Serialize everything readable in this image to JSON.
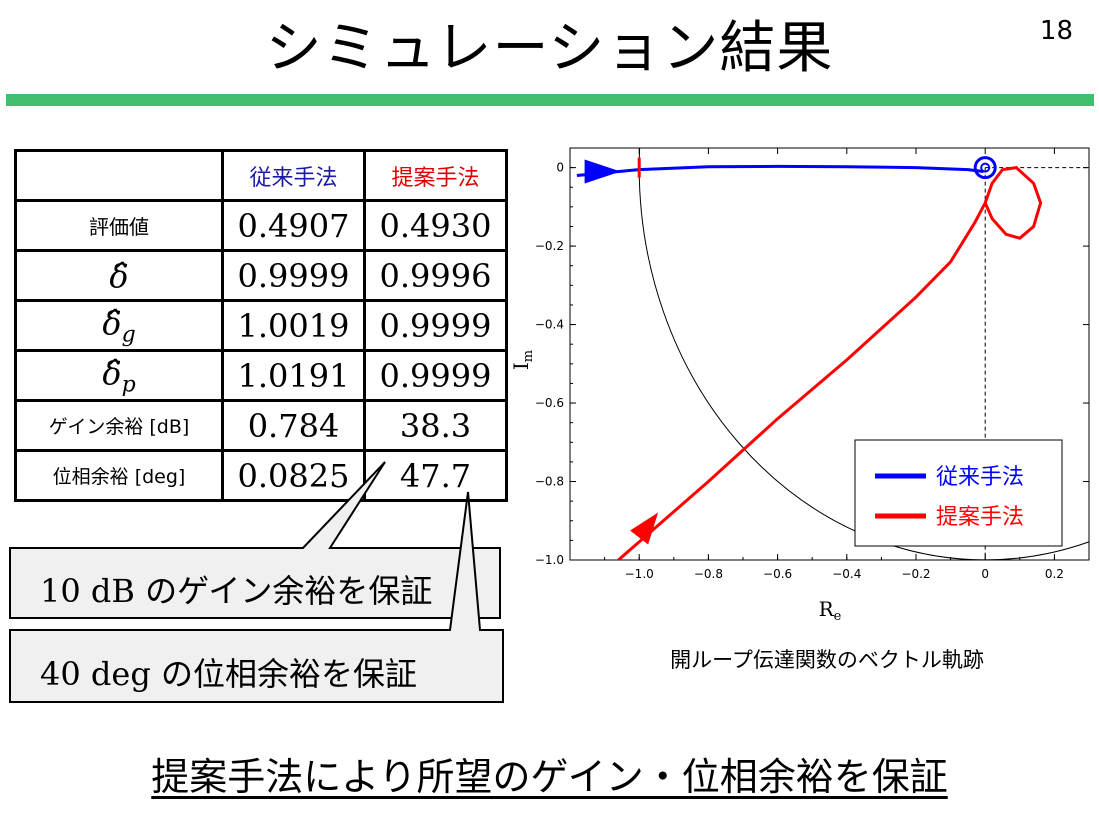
{
  "slide": {
    "title": "シミュレーション結果",
    "page_number": "18",
    "footer": "提案手法により所望のゲイン・位相余裕を保証"
  },
  "table": {
    "headers": [
      "",
      "従来手法",
      "提案手法"
    ],
    "header_colors": [
      "#000000",
      "#1a1aa6",
      "#e00000"
    ],
    "rows": [
      {
        "label": "評価値",
        "conventional": "0.4907",
        "proposed": "0.4930"
      },
      {
        "label": "δ̂",
        "conventional": "0.9999",
        "proposed": "0.9996"
      },
      {
        "label": "δ̂",
        "sub": "g",
        "conventional": "1.0019",
        "proposed": "0.9999"
      },
      {
        "label": "δ̂",
        "sub": "p",
        "conventional": "1.0191",
        "proposed": "0.9999"
      },
      {
        "label": "ゲイン余裕 [dB]",
        "conventional": "0.784",
        "proposed": "38.3"
      },
      {
        "label": "位相余裕 [deg]",
        "conventional": "0.0825",
        "proposed": "47.7"
      }
    ]
  },
  "callouts": [
    {
      "text": "10 dB のゲイン余裕を保証"
    },
    {
      "text": "40 deg の位相余裕を保証"
    }
  ],
  "chart_data": {
    "type": "line",
    "caption": "開ループ伝達関数のベクトル軌跡",
    "xlabel_main": "R",
    "xlabel_sub": "e",
    "ylabel_main": "I",
    "ylabel_sub": "m",
    "xlim": [
      -1.2,
      0.3
    ],
    "ylim": [
      -1.0,
      0.05
    ],
    "xticks": [
      -1.0,
      -0.8,
      -0.6,
      -0.4,
      -0.2,
      0,
      0.2
    ],
    "xtick_labels": [
      "−1.0",
      "−0.8",
      "−0.6",
      "−0.4",
      "−0.2",
      "0",
      "0.2"
    ],
    "yticks": [
      0,
      -0.2,
      -0.4,
      -0.6,
      -0.8,
      -1.0
    ],
    "ytick_labels": [
      "0",
      "−0.2",
      "−0.4",
      "−0.6",
      "−0.8",
      "−1.0"
    ],
    "legend_position": "lower-right",
    "series": [
      {
        "name": "従来手法",
        "color": "#0000ff",
        "points": [
          [
            -1.18,
            -0.02
          ],
          [
            -1.0,
            -0.005
          ],
          [
            -0.8,
            0.002
          ],
          [
            -0.6,
            0.003
          ],
          [
            -0.4,
            0.002
          ],
          [
            -0.2,
            0.0
          ],
          [
            -0.05,
            -0.005
          ],
          [
            -0.005,
            -0.01
          ]
        ]
      },
      {
        "name": "提案手法",
        "color": "#ff0000",
        "points": [
          [
            -1.06,
            -1.0
          ],
          [
            -0.8,
            -0.8
          ],
          [
            -0.6,
            -0.64
          ],
          [
            -0.4,
            -0.49
          ],
          [
            -0.2,
            -0.33
          ],
          [
            -0.1,
            -0.24
          ],
          [
            -0.03,
            -0.14
          ],
          [
            0.0,
            -0.09
          ],
          [
            0.02,
            -0.04
          ],
          [
            0.05,
            -0.005
          ],
          [
            0.09,
            0.0
          ],
          [
            0.14,
            -0.04
          ],
          [
            0.16,
            -0.09
          ],
          [
            0.14,
            -0.15
          ],
          [
            0.1,
            -0.18
          ],
          [
            0.06,
            -0.17
          ],
          [
            0.02,
            -0.13
          ],
          [
            0.0,
            -0.09
          ]
        ]
      }
    ],
    "unit_circle": {
      "center": [
        0,
        0
      ],
      "radius": 1,
      "color": "#000000"
    }
  }
}
